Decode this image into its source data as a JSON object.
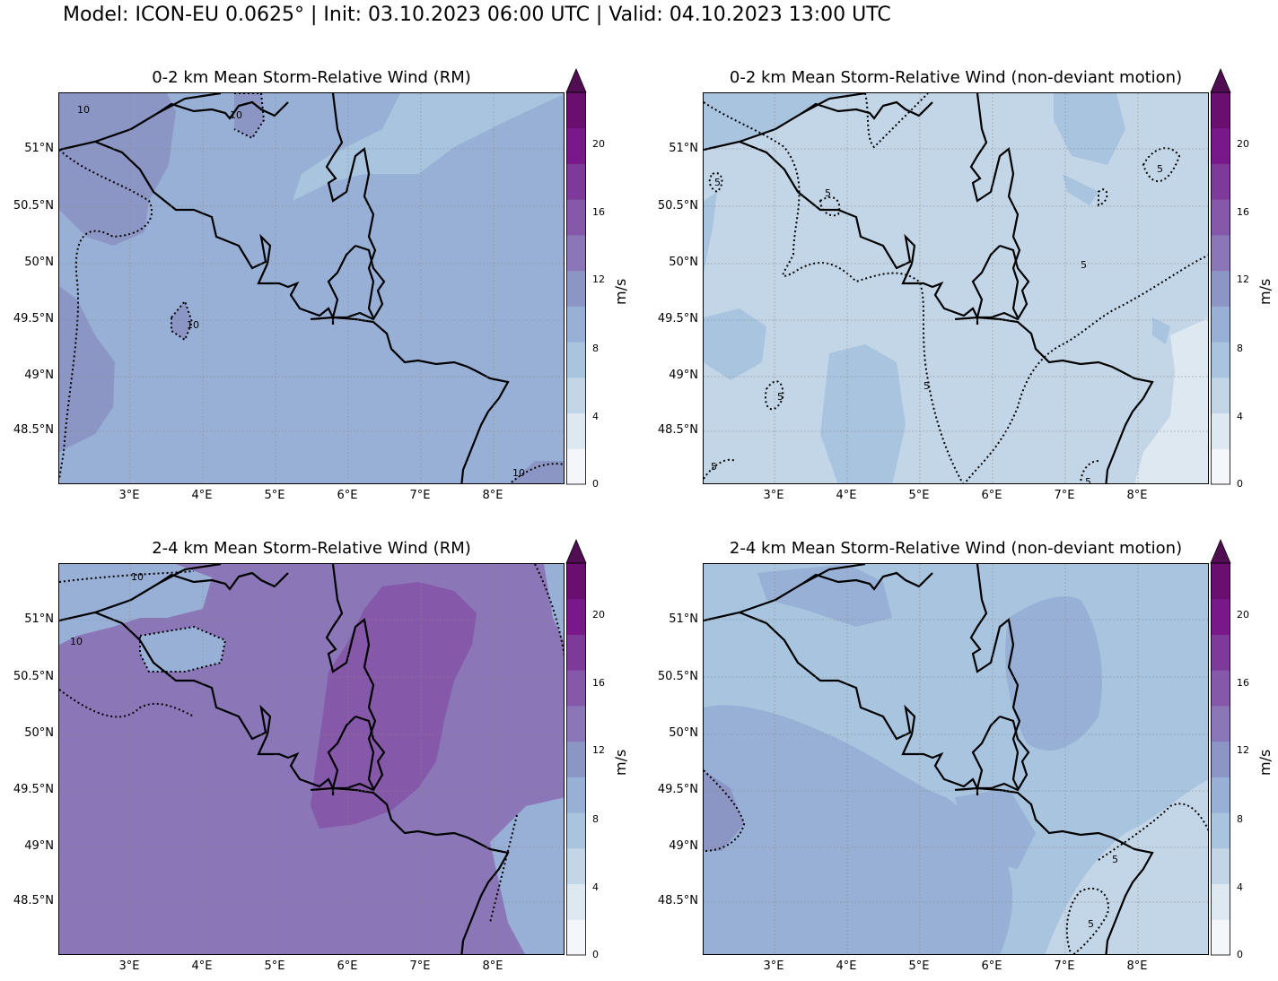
{
  "title": "Model: ICON-EU 0.0625° | Init: 03.10.2023 06:00 UTC | Valid: 04.10.2023 13:00 UTC",
  "colorbar": {
    "unit": "m/s",
    "ticks": [
      "0",
      "4",
      "8",
      "12",
      "16",
      "20"
    ],
    "levels": [
      0,
      2,
      4,
      6,
      8,
      10,
      12,
      14,
      16,
      18,
      20,
      22
    ],
    "colors": [
      "#f4f6fa",
      "#dde8f1",
      "#c3d6e8",
      "#a9c4df",
      "#98b0d6",
      "#8c96c5",
      "#8b76b7",
      "#8558aa",
      "#7d3a98",
      "#79188a",
      "#6a0f6f",
      "#510e52"
    ],
    "extend": "max"
  },
  "axes": {
    "lat_labels": [
      "51°N",
      "50.5°N",
      "50°N",
      "49.5°N",
      "49°N",
      "48.5°N"
    ],
    "lon_labels": [
      "3°E",
      "4°E",
      "5°E",
      "6°E",
      "7°E",
      "8°E"
    ]
  },
  "panels": [
    {
      "id": "p1",
      "title": "0-2 km Mean Storm-Relative Wind (RM)",
      "base_color": "#98b0d6",
      "contour_labels": [
        "10",
        "10",
        "10",
        "10"
      ]
    },
    {
      "id": "p2",
      "title": "0-2 km Mean Storm-Relative Wind (non-deviant motion)",
      "base_color": "#c3d6e8",
      "contour_labels": [
        "5",
        "5",
        "5",
        "5",
        "5",
        "5",
        "5",
        "5"
      ]
    },
    {
      "id": "p3",
      "title": "2-4 km Mean Storm-Relative Wind (RM)",
      "base_color": "#8b76b7",
      "contour_labels": [
        "10",
        "10"
      ]
    },
    {
      "id": "p4",
      "title": "2-4 km Mean Storm-Relative Wind (non-deviant motion)",
      "base_color": "#a9c4df",
      "contour_labels": [
        "5",
        "5"
      ]
    }
  ]
}
